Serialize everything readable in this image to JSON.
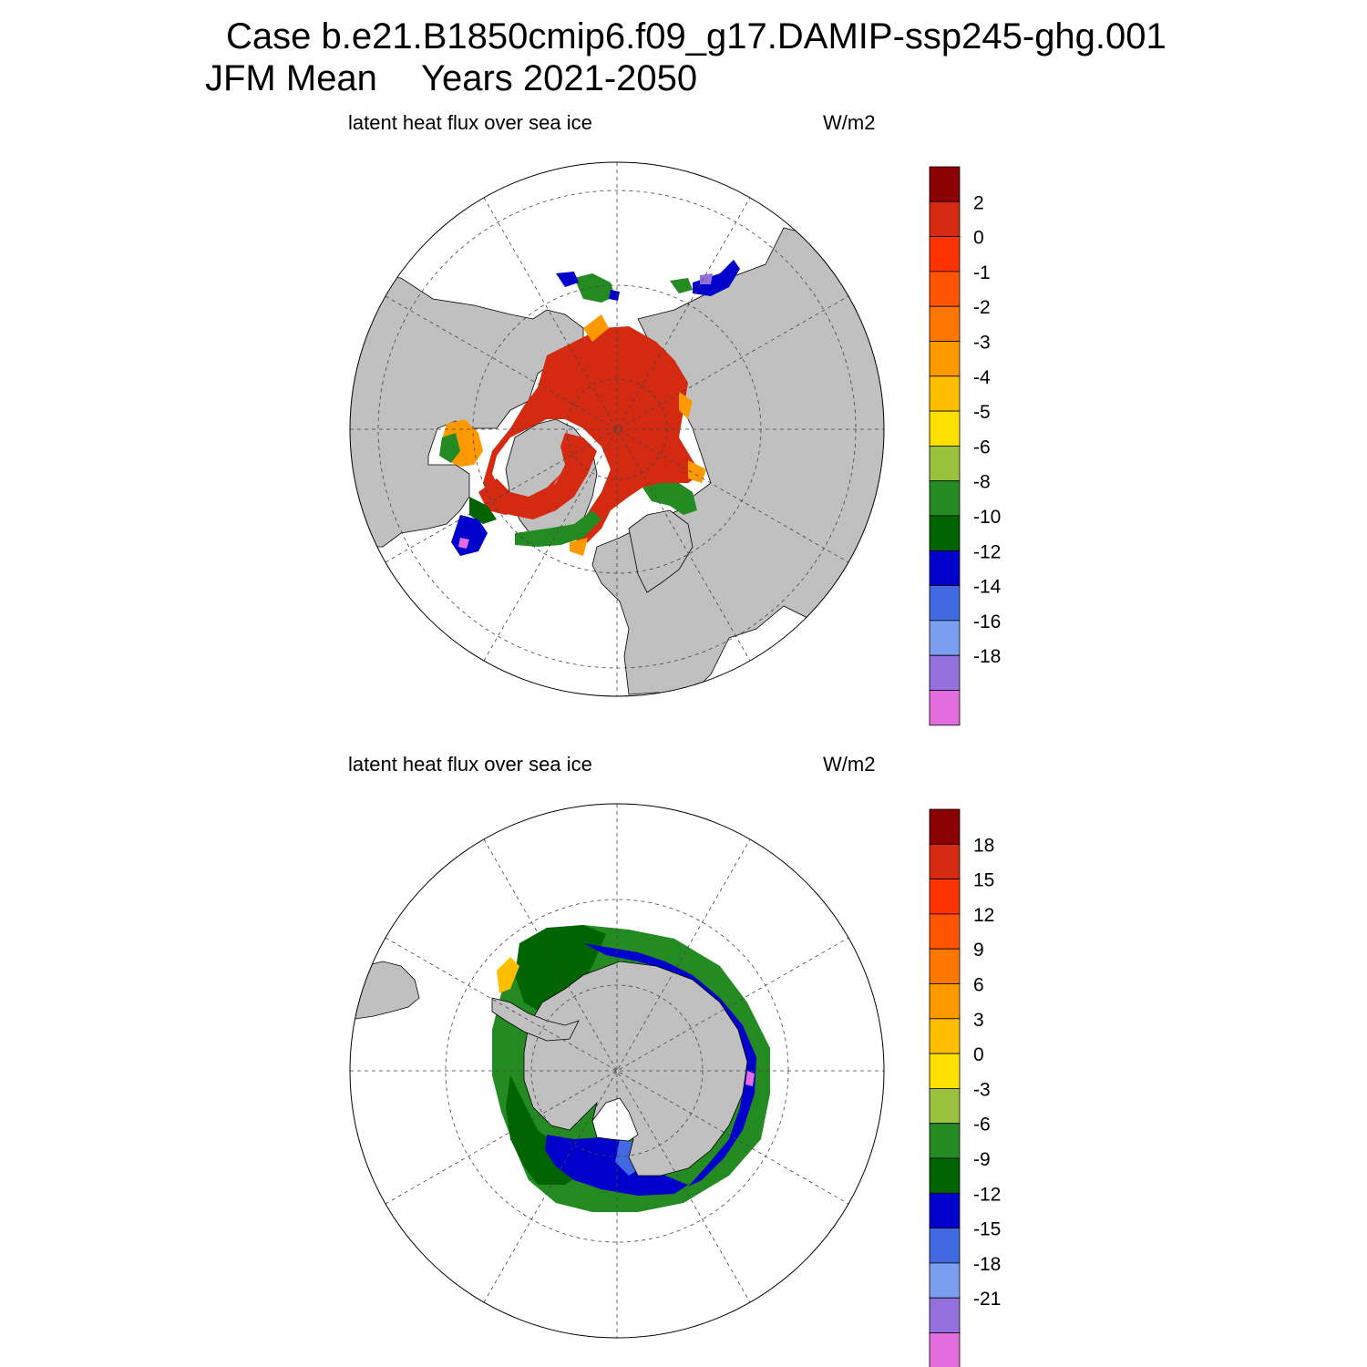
{
  "title": {
    "case": "Case b.e21.B1850cmip6.f09_g17.DAMIP-ssp245-ghg.001",
    "season": "JFM Mean",
    "years": "Years 2021-2050"
  },
  "panels": [
    {
      "hemisphere": "north",
      "variable": "latent heat flux over sea ice",
      "units": "W/m2",
      "colorbar": {
        "labels": [
          "2",
          "0",
          "-1",
          "-2",
          "-3",
          "-4",
          "-5",
          "-6",
          "-8",
          "-10",
          "-12",
          "-14",
          "-16",
          "-18"
        ],
        "colors": [
          "#8b0000",
          "#d42a12",
          "#ff3300",
          "#ff5500",
          "#ff7700",
          "#ff9900",
          "#ffbf00",
          "#ffe000",
          "#99c13c",
          "#238b22",
          "#006400",
          "#0000cd",
          "#4169e1",
          "#7b9ef0",
          "#9370db",
          "#e36de0"
        ]
      }
    },
    {
      "hemisphere": "south",
      "variable": "latent heat flux over sea ice",
      "units": "W/m2",
      "colorbar": {
        "labels": [
          "18",
          "15",
          "12",
          "9",
          "6",
          "3",
          "0",
          "-3",
          "-6",
          "-9",
          "-12",
          "-15",
          "-18",
          "-21"
        ],
        "colors": [
          "#8b0000",
          "#d42a12",
          "#ff3300",
          "#ff5500",
          "#ff7700",
          "#ff9900",
          "#ffbf00",
          "#ffe000",
          "#99c13c",
          "#238b22",
          "#006400",
          "#0000cd",
          "#4169e1",
          "#7b9ef0",
          "#9370db",
          "#e36de0"
        ]
      }
    }
  ],
  "colors": {
    "land": "#c0c0c0",
    "ocean": "#ffffff",
    "coast": "#000000"
  }
}
